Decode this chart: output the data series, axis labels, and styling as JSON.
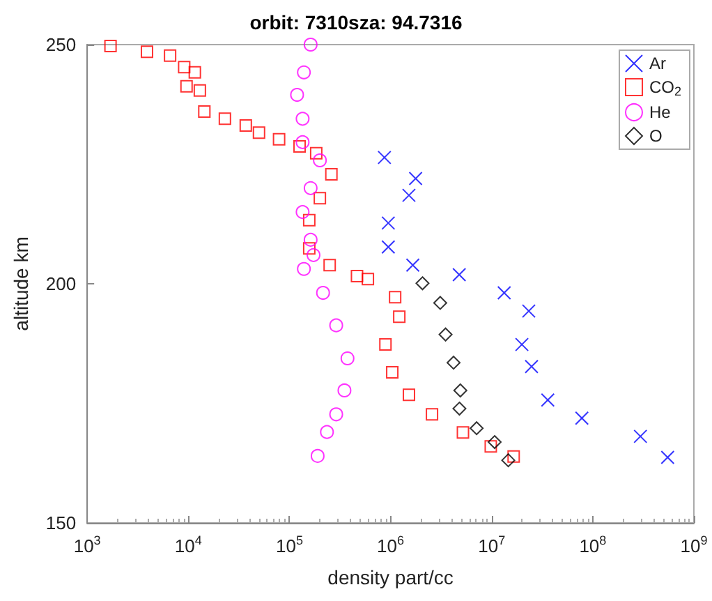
{
  "chart_data": {
    "type": "scatter",
    "title": "orbit: 7310sza: 94.7316",
    "xlabel": "density part/cc",
    "ylabel": "altitude km",
    "log": "x",
    "grid": false,
    "legend": "top right",
    "xlim": [
      1000,
      1000000000
    ],
    "xticks": [
      {
        "value": 1000,
        "label": "10$^{3}$"
      },
      {
        "value": 10000,
        "label": "10$^{4}$"
      },
      {
        "value": 100000,
        "label": "10$^{5}$"
      },
      {
        "value": 1000000,
        "label": "10$^{6}$"
      },
      {
        "value": 10000000,
        "label": "10$^{7}$"
      },
      {
        "value": 100000000,
        "label": "10$^{8}$"
      },
      {
        "value": 1000000000,
        "label": "10$^{9}$"
      }
    ],
    "ylim": [
      150,
      250
    ],
    "yticks": [
      150,
      200,
      250
    ],
    "series": [
      {
        "name": "Ar",
        "color": "#0000ff",
        "marker": "cross",
        "x": [
          870000,
          1770000,
          1520000,
          950000,
          950000,
          1660000,
          4780000,
          13300000,
          23300000,
          19900000,
          24800000,
          35900000,
          78000000,
          296000000,
          550000000
        ],
        "values": [
          226.4,
          222.0,
          218.5,
          212.7,
          207.7,
          203.9,
          201.9,
          198.1,
          194.3,
          187.3,
          182.7,
          175.7,
          171.9,
          168.1,
          163.7
        ]
      },
      {
        "name": "CO$_{2}$",
        "color": "#ff0000",
        "marker": "square",
        "x": [
          1700,
          3900,
          6600,
          9100,
          11600,
          9600,
          13000,
          14400,
          23000,
          37000,
          50000,
          79000,
          126000,
          184000,
          260000,
          200000,
          157000,
          157000,
          250000,
          466000,
          597000,
          1110000,
          1220000,
          890000,
          1040000,
          1520000,
          2570000,
          5200000,
          9800000,
          16500000
        ],
        "values": [
          249.7,
          248.5,
          247.7,
          245.3,
          244.2,
          241.3,
          240.4,
          236.0,
          234.5,
          233.1,
          231.6,
          230.2,
          228.7,
          227.3,
          222.9,
          217.9,
          213.3,
          207.4,
          203.9,
          201.6,
          201.0,
          197.2,
          193.1,
          187.3,
          181.5,
          176.8,
          172.7,
          168.9,
          166.0,
          163.9
        ]
      },
      {
        "name": "He",
        "color": "#ff00ff",
        "marker": "circle",
        "x": [
          162000,
          139000,
          119000,
          135000,
          135000,
          200000,
          162000,
          135000,
          162000,
          173000,
          139000,
          215000,
          290000,
          375000,
          350000,
          290000,
          235000,
          190000
        ],
        "values": [
          250.0,
          244.2,
          239.5,
          234.5,
          229.6,
          225.8,
          220.0,
          215.0,
          209.2,
          206.0,
          203.1,
          198.1,
          191.3,
          184.4,
          177.7,
          172.7,
          169.0,
          164.0
        ]
      },
      {
        "name": "O",
        "color": "#000000",
        "marker": "diamond",
        "x": [
          2070000,
          3100000,
          3500000,
          4200000,
          4900000,
          4800000,
          7100000,
          10700000,
          14600000
        ],
        "values": [
          200.1,
          196.0,
          189.4,
          183.5,
          177.7,
          173.9,
          169.8,
          166.9,
          163.1
        ]
      }
    ]
  }
}
